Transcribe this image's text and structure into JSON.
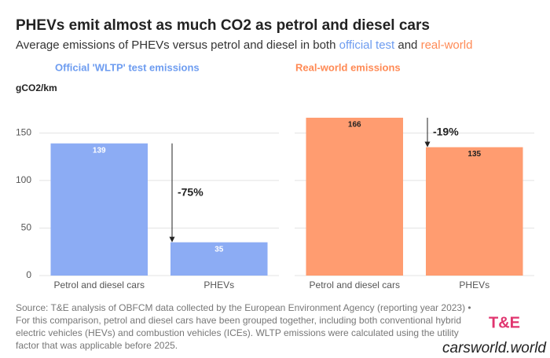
{
  "title": "PHEVs emit almost as much CO2 as petrol and diesel cars",
  "subtitle": [
    {
      "text": "Average emissions of PHEVs versus petrol and diesel in both ",
      "color": "#333333"
    },
    {
      "text": "official test",
      "color": "#6d9cf0"
    },
    {
      "text": " and ",
      "color": "#333333"
    },
    {
      "text": "real-world",
      "color": "#ff8a55"
    }
  ],
  "chart_data": [
    {
      "type": "bar",
      "title": "Official 'WLTP' test emissions",
      "title_color": "#6d9cf0",
      "ylabel": "gCO2/km",
      "categories": [
        "Petrol and diesel cars",
        "PHEVs"
      ],
      "values": [
        139,
        35
      ],
      "color": "#8cacf4",
      "label_color": "#ffffff",
      "ylim": [
        0,
        180
      ],
      "yticks": [
        0,
        50,
        100,
        150
      ],
      "tick_labels": true,
      "grid": true,
      "annotation": "-75%"
    },
    {
      "type": "bar",
      "title": "Real-world emissions",
      "title_color": "#ff8a55",
      "categories": [
        "Petrol and diesel cars",
        "PHEVs"
      ],
      "values": [
        166,
        135
      ],
      "color": "#ff9c70",
      "label_color": "#222222",
      "ylim": [
        0,
        180
      ],
      "yticks": [
        0,
        50,
        100,
        150
      ],
      "tick_labels": false,
      "grid": true,
      "annotation": "-19%"
    }
  ],
  "source": [
    "Source: T&E analysis of OBFCM data collected by the European Environment Agency (reporting year 2023) •",
    "For this comparison, petrol and diesel cars have been grouped together, including both conventional hybrid",
    "electric vehicles (HEVs) and combustion vehicles (ICEs). WLTP emissions were calculated using the utility",
    "factor that was applicable before 2025."
  ],
  "logo": "T&E",
  "watermark": "carsworld.world"
}
